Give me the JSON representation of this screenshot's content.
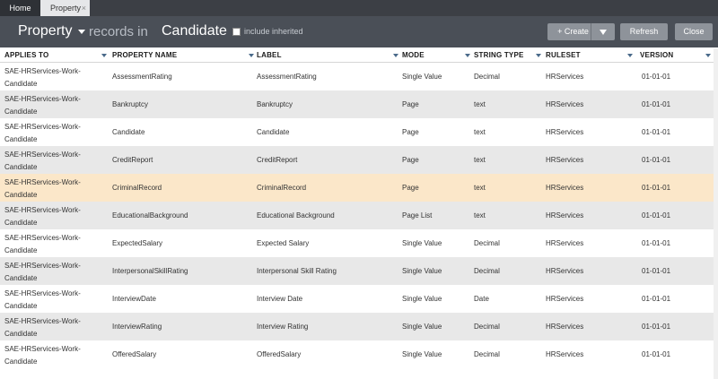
{
  "tabs": {
    "home": "Home",
    "property": "Property",
    "property_close": "×"
  },
  "header": {
    "rule_type": "Property",
    "records_in": "records in",
    "class_name": "Candidate",
    "include_inherited": "include inherited",
    "create_label": "+ Create",
    "refresh_label": "Refresh",
    "close_label": "Close"
  },
  "columns": {
    "applies_to": "APPLIES TO",
    "property_name": "PROPERTY NAME",
    "label": "LABEL",
    "mode": "MODE",
    "string_type": "STRING TYPE",
    "ruleset": "RULESET",
    "version": "VERSION"
  },
  "rows": [
    {
      "applies_to": "SAE-HRServices-Work-Candidate",
      "property_name": "AssessmentRating",
      "label": "AssessmentRating",
      "mode": "Single Value",
      "string_type": "Decimal",
      "ruleset": "HRServices",
      "version": "01-01-01"
    },
    {
      "applies_to": "SAE-HRServices-Work-Candidate",
      "property_name": "Bankruptcy",
      "label": "Bankruptcy",
      "mode": "Page",
      "string_type": "text",
      "ruleset": "HRServices",
      "version": "01-01-01"
    },
    {
      "applies_to": "SAE-HRServices-Work-Candidate",
      "property_name": "Candidate",
      "label": "Candidate",
      "mode": "Page",
      "string_type": "text",
      "ruleset": "HRServices",
      "version": "01-01-01"
    },
    {
      "applies_to": "SAE-HRServices-Work-Candidate",
      "property_name": "CreditReport",
      "label": "CreditReport",
      "mode": "Page",
      "string_type": "text",
      "ruleset": "HRServices",
      "version": "01-01-01"
    },
    {
      "applies_to": "SAE-HRServices-Work-Candidate",
      "property_name": "CriminalRecord",
      "label": "CriminalRecord",
      "mode": "Page",
      "string_type": "text",
      "ruleset": "HRServices",
      "version": "01-01-01"
    },
    {
      "applies_to": "SAE-HRServices-Work-Candidate",
      "property_name": "EducationalBackground",
      "label": "Educational Background",
      "mode": "Page List",
      "string_type": "text",
      "ruleset": "HRServices",
      "version": "01-01-01"
    },
    {
      "applies_to": "SAE-HRServices-Work-Candidate",
      "property_name": "ExpectedSalary",
      "label": "Expected Salary",
      "mode": "Single Value",
      "string_type": "Decimal",
      "ruleset": "HRServices",
      "version": "01-01-01"
    },
    {
      "applies_to": "SAE-HRServices-Work-Candidate",
      "property_name": "InterpersonalSkillRating",
      "label": "Interpersonal Skill Rating",
      "mode": "Single Value",
      "string_type": "Decimal",
      "ruleset": "HRServices",
      "version": "01-01-01"
    },
    {
      "applies_to": "SAE-HRServices-Work-Candidate",
      "property_name": "InterviewDate",
      "label": "Interview Date",
      "mode": "Single Value",
      "string_type": "Date",
      "ruleset": "HRServices",
      "version": "01-01-01"
    },
    {
      "applies_to": "SAE-HRServices-Work-Candidate",
      "property_name": "InterviewRating",
      "label": "Interview Rating",
      "mode": "Single Value",
      "string_type": "Decimal",
      "ruleset": "HRServices",
      "version": "01-01-01"
    },
    {
      "applies_to": "SAE-HRServices-Work-Candidate",
      "property_name": "OfferedSalary",
      "label": "OfferedSalary",
      "mode": "Single Value",
      "string_type": "Decimal",
      "ruleset": "HRServices",
      "version": "01-01-01"
    }
  ],
  "selected_row": 4,
  "colors": {
    "tabbar_bg": "#3c3f45",
    "header_bg": "#4a4f57",
    "row_alt_bg": "#e8e8e8",
    "row_selected_bg": "#fbe7c9",
    "button_bg": "#8e939a"
  }
}
